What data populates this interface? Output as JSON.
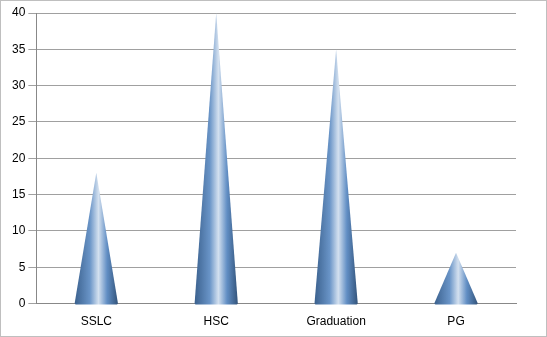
{
  "chart_data": {
    "type": "bar",
    "categories": [
      "SSLC",
      "HSC",
      "Graduation",
      "PG"
    ],
    "values": [
      18,
      40,
      35,
      7
    ],
    "color": "#4f81bd",
    "ylim": [
      0,
      40
    ],
    "yticks": [
      0,
      5,
      10,
      15,
      20,
      25,
      30,
      35,
      40
    ],
    "grid": true
  }
}
